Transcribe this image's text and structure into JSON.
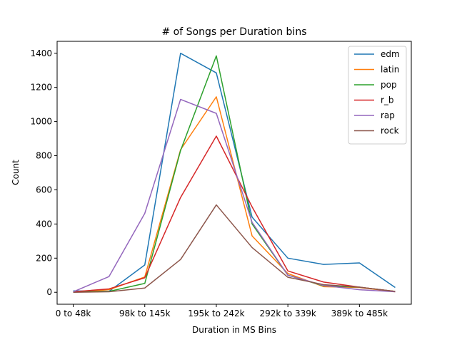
{
  "chart_data": {
    "type": "line",
    "title": "# of Songs per Duration bins",
    "xlabel": "Duration in MS Bins",
    "ylabel": "Count",
    "x_tick_labels": [
      "0 to 48k",
      "98k to 145k",
      "195k to 242k",
      "292k to 339k",
      "389k to 485k"
    ],
    "x_tick_positions": [
      0,
      2,
      4,
      6,
      8
    ],
    "x_points": [
      0,
      1,
      2,
      3,
      4,
      5,
      6,
      7,
      8,
      9
    ],
    "ylim": [
      -70,
      1470
    ],
    "y_ticks": [
      0,
      200,
      400,
      600,
      800,
      1000,
      1200,
      1400
    ],
    "legend_position": "top-right",
    "grid": false,
    "series": [
      {
        "name": "edm",
        "color": "#1f77b4",
        "values": [
          8,
          5,
          160,
          1400,
          1285,
          440,
          200,
          163,
          172,
          28
        ]
      },
      {
        "name": "latin",
        "color": "#ff7f0e",
        "values": [
          0,
          15,
          90,
          835,
          1145,
          330,
          110,
          33,
          28,
          3
        ]
      },
      {
        "name": "pop",
        "color": "#2ca02c",
        "values": [
          3,
          5,
          52,
          830,
          1385,
          400,
          100,
          38,
          30,
          5
        ]
      },
      {
        "name": "r_b",
        "color": "#d62728",
        "values": [
          3,
          20,
          85,
          555,
          915,
          500,
          125,
          60,
          30,
          5
        ]
      },
      {
        "name": "rap",
        "color": "#9467bd",
        "values": [
          3,
          92,
          462,
          1130,
          1048,
          410,
          100,
          40,
          15,
          3
        ]
      },
      {
        "name": "rock",
        "color": "#8c564b",
        "values": [
          0,
          3,
          25,
          192,
          512,
          262,
          88,
          45,
          30,
          5
        ]
      }
    ]
  }
}
